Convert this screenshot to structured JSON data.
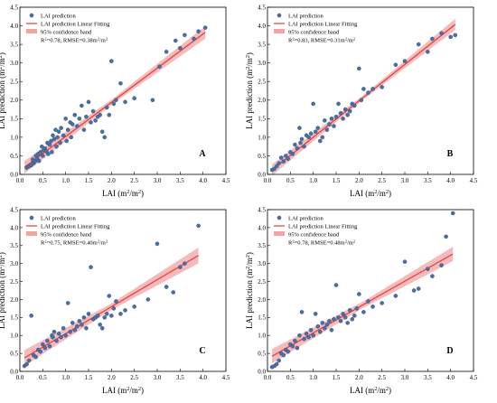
{
  "figure": {
    "colors": {
      "point": "#4a6fa5",
      "point_edge": "#2f4f7f",
      "fit_line": "#e03c3c",
      "band": "#f4a3a3"
    },
    "legend": {
      "points": "LAI prediction",
      "line": "LAI prediction Linear Fitting",
      "band": "95% confidence band"
    }
  },
  "chart_data": [
    {
      "type": "scatter",
      "panel_label": "A",
      "xlabel": "LAI (m²/m²)",
      "ylabel": "LAI prediction (m²/m²)",
      "xlim": [
        0,
        4.5
      ],
      "ylim": [
        0,
        4.5
      ],
      "xticks": [
        "0.0",
        "0.5",
        "1.0",
        "1.5",
        "2.0",
        "2.5",
        "3.0",
        "3.5",
        "4.0",
        "4.5"
      ],
      "yticks": [
        "0.0",
        "0.5",
        "1.0",
        "1.5",
        "2.0",
        "2.5",
        "3.0",
        "3.5",
        "4.0",
        "4.5"
      ],
      "stats": "R²=0.78, RMSE=0.38m²/m²",
      "fit": {
        "slope": 0.92,
        "intercept": 0.1
      },
      "band_halfwidth": [
        0.07,
        0.17
      ],
      "points": [
        [
          0.15,
          0.18
        ],
        [
          0.2,
          0.22
        ],
        [
          0.25,
          0.25
        ],
        [
          0.28,
          0.4
        ],
        [
          0.3,
          0.3
        ],
        [
          0.33,
          0.35
        ],
        [
          0.35,
          0.5
        ],
        [
          0.38,
          0.42
        ],
        [
          0.4,
          0.55
        ],
        [
          0.42,
          0.36
        ],
        [
          0.45,
          0.6
        ],
        [
          0.48,
          0.75
        ],
        [
          0.5,
          0.5
        ],
        [
          0.52,
          0.65
        ],
        [
          0.55,
          0.7
        ],
        [
          0.58,
          0.62
        ],
        [
          0.6,
          0.85
        ],
        [
          0.62,
          0.55
        ],
        [
          0.65,
          0.8
        ],
        [
          0.68,
          0.9
        ],
        [
          0.7,
          0.6
        ],
        [
          0.72,
          1.05
        ],
        [
          0.75,
          0.95
        ],
        [
          0.78,
          1.2
        ],
        [
          0.8,
          0.75
        ],
        [
          0.82,
          1.0
        ],
        [
          0.85,
          1.15
        ],
        [
          0.88,
          0.85
        ],
        [
          0.9,
          1.25
        ],
        [
          0.95,
          1.05
        ],
        [
          1.0,
          1.5
        ],
        [
          1.02,
          0.9
        ],
        [
          1.05,
          1.2
        ],
        [
          1.1,
          1.4
        ],
        [
          1.12,
          1.0
        ],
        [
          1.15,
          1.35
        ],
        [
          1.2,
          1.6
        ],
        [
          1.25,
          1.3
        ],
        [
          1.3,
          1.5
        ],
        [
          1.35,
          1.85
        ],
        [
          1.4,
          1.2
        ],
        [
          1.45,
          1.55
        ],
        [
          1.5,
          1.95
        ],
        [
          1.55,
          1.4
        ],
        [
          1.6,
          1.7
        ],
        [
          1.65,
          1.45
        ],
        [
          1.7,
          1.55
        ],
        [
          1.75,
          1.6
        ],
        [
          1.8,
          1.15
        ],
        [
          1.85,
          1.0
        ],
        [
          1.9,
          1.8
        ],
        [
          1.95,
          1.6
        ],
        [
          2.0,
          3.05
        ],
        [
          2.05,
          1.9
        ],
        [
          2.1,
          2.0
        ],
        [
          2.2,
          2.45
        ],
        [
          2.3,
          1.95
        ],
        [
          2.5,
          2.05
        ],
        [
          2.9,
          2.0
        ],
        [
          3.05,
          2.9
        ],
        [
          3.2,
          3.3
        ],
        [
          3.4,
          3.6
        ],
        [
          3.5,
          3.4
        ],
        [
          3.6,
          3.75
        ],
        [
          3.8,
          3.65
        ],
        [
          3.9,
          3.85
        ],
        [
          4.05,
          3.95
        ]
      ]
    },
    {
      "type": "scatter",
      "panel_label": "B",
      "xlabel": "LAI (m²/m²)",
      "ylabel": "LAI prediction (m²/m²)",
      "xlim": [
        0,
        4.5
      ],
      "ylim": [
        0,
        4.5
      ],
      "xticks": [
        "0.0",
        "0.5",
        "1.0",
        "1.5",
        "2.0",
        "2.5",
        "3.0",
        "3.5",
        "4.0",
        "4.5"
      ],
      "yticks": [
        "0.0",
        "0.5",
        "1.0",
        "1.5",
        "2.0",
        "2.5",
        "3.0",
        "3.5",
        "4.0",
        "4.5"
      ],
      "stats": "R²=0.83, RMSE=0.31m²/m²",
      "fit": {
        "slope": 0.98,
        "intercept": 0.02
      },
      "band_halfwidth": [
        0.06,
        0.15
      ],
      "points": [
        [
          0.1,
          0.12
        ],
        [
          0.15,
          0.15
        ],
        [
          0.2,
          0.22
        ],
        [
          0.25,
          0.3
        ],
        [
          0.3,
          0.45
        ],
        [
          0.35,
          0.35
        ],
        [
          0.4,
          0.5
        ],
        [
          0.45,
          0.42
        ],
        [
          0.5,
          0.6
        ],
        [
          0.55,
          0.55
        ],
        [
          0.6,
          0.8
        ],
        [
          0.65,
          0.7
        ],
        [
          0.7,
          1.25
        ],
        [
          0.72,
          0.85
        ],
        [
          0.75,
          0.95
        ],
        [
          0.8,
          0.75
        ],
        [
          0.85,
          1.05
        ],
        [
          0.9,
          1.0
        ],
        [
          0.95,
          1.1
        ],
        [
          1.0,
          1.9
        ],
        [
          1.05,
          1.15
        ],
        [
          1.1,
          1.25
        ],
        [
          1.15,
          0.9
        ],
        [
          1.2,
          1.0
        ],
        [
          1.25,
          1.45
        ],
        [
          1.3,
          1.2
        ],
        [
          1.35,
          1.35
        ],
        [
          1.4,
          1.5
        ],
        [
          1.45,
          1.3
        ],
        [
          1.5,
          1.55
        ],
        [
          1.55,
          1.9
        ],
        [
          1.6,
          1.65
        ],
        [
          1.65,
          1.5
        ],
        [
          1.7,
          1.75
        ],
        [
          1.75,
          1.6
        ],
        [
          1.8,
          1.7
        ],
        [
          1.85,
          1.9
        ],
        [
          1.9,
          1.85
        ],
        [
          2.0,
          2.85
        ],
        [
          2.05,
          2.0
        ],
        [
          2.1,
          2.3
        ],
        [
          2.2,
          2.2
        ],
        [
          2.3,
          2.3
        ],
        [
          2.5,
          2.35
        ],
        [
          2.8,
          2.95
        ],
        [
          3.0,
          3.05
        ],
        [
          3.3,
          3.5
        ],
        [
          3.5,
          3.3
        ],
        [
          3.6,
          3.65
        ],
        [
          3.8,
          3.8
        ],
        [
          4.0,
          3.7
        ],
        [
          4.1,
          3.75
        ]
      ]
    },
    {
      "type": "scatter",
      "panel_label": "C",
      "xlabel": "LAI (m²/m²)",
      "ylabel": "LAI prediction (m²/m²)",
      "xlim": [
        0,
        4.5
      ],
      "ylim": [
        0,
        4.5
      ],
      "xticks": [
        "0.0",
        "0.5",
        "1.0",
        "1.5",
        "2.0",
        "2.5",
        "3.0",
        "3.5",
        "4.0",
        "4.5"
      ],
      "yticks": [
        "0.0",
        "0.5",
        "1.0",
        "1.5",
        "2.0",
        "2.5",
        "3.0",
        "3.5",
        "4.0",
        "4.5"
      ],
      "stats": "R²=0.75, RMSE=0.40m²/m²",
      "fit": {
        "slope": 0.75,
        "intercept": 0.3
      },
      "band_halfwidth": [
        0.09,
        0.22
      ],
      "points": [
        [
          0.1,
          0.15
        ],
        [
          0.15,
          0.2
        ],
        [
          0.2,
          0.3
        ],
        [
          0.25,
          1.55
        ],
        [
          0.3,
          0.45
        ],
        [
          0.35,
          0.4
        ],
        [
          0.4,
          0.6
        ],
        [
          0.45,
          0.55
        ],
        [
          0.5,
          0.75
        ],
        [
          0.55,
          0.65
        ],
        [
          0.6,
          0.85
        ],
        [
          0.65,
          0.7
        ],
        [
          0.7,
          1.0
        ],
        [
          0.72,
          0.95
        ],
        [
          0.75,
          1.1
        ],
        [
          0.8,
          0.85
        ],
        [
          0.85,
          1.05
        ],
        [
          0.9,
          0.95
        ],
        [
          0.95,
          1.2
        ],
        [
          1.0,
          1.0
        ],
        [
          1.05,
          1.9
        ],
        [
          1.1,
          1.1
        ],
        [
          1.15,
          1.35
        ],
        [
          1.2,
          1.15
        ],
        [
          1.25,
          1.25
        ],
        [
          1.3,
          1.4
        ],
        [
          1.35,
          1.3
        ],
        [
          1.4,
          1.5
        ],
        [
          1.45,
          1.2
        ],
        [
          1.5,
          1.6
        ],
        [
          1.55,
          2.9
        ],
        [
          1.6,
          1.45
        ],
        [
          1.65,
          1.5
        ],
        [
          1.7,
          1.55
        ],
        [
          1.75,
          1.3
        ],
        [
          1.8,
          1.2
        ],
        [
          1.85,
          1.5
        ],
        [
          1.9,
          1.6
        ],
        [
          1.95,
          2.1
        ],
        [
          2.0,
          1.55
        ],
        [
          2.05,
          1.75
        ],
        [
          2.1,
          1.95
        ],
        [
          2.2,
          1.6
        ],
        [
          2.3,
          1.7
        ],
        [
          2.5,
          1.8
        ],
        [
          2.8,
          2.0
        ],
        [
          3.0,
          3.55
        ],
        [
          3.2,
          2.35
        ],
        [
          3.35,
          2.2
        ],
        [
          3.5,
          2.9
        ],
        [
          3.6,
          3.0
        ],
        [
          3.9,
          4.05
        ]
      ]
    },
    {
      "type": "scatter",
      "panel_label": "D",
      "xlabel": "LAI (m²/m²)",
      "ylabel": "LAI prediction (m²/m²)",
      "xlim": [
        0,
        4.5
      ],
      "ylim": [
        0,
        4.5
      ],
      "xticks": [
        "0.0",
        "0.5",
        "1.0",
        "1.5",
        "2.0",
        "2.5",
        "3.0",
        "3.5",
        "4.0",
        "4.5"
      ],
      "yticks": [
        "0.0",
        "0.5",
        "1.0",
        "1.5",
        "2.0",
        "2.5",
        "3.0",
        "3.5",
        "4.0",
        "4.5"
      ],
      "stats": "R²=0.78, RMSE=0.48m²/m²",
      "fit": {
        "slope": 0.72,
        "intercept": 0.35
      },
      "band_halfwidth": [
        0.09,
        0.2
      ],
      "points": [
        [
          0.1,
          0.12
        ],
        [
          0.15,
          0.15
        ],
        [
          0.2,
          0.2
        ],
        [
          0.25,
          0.3
        ],
        [
          0.3,
          0.5
        ],
        [
          0.35,
          0.45
        ],
        [
          0.4,
          0.6
        ],
        [
          0.45,
          0.55
        ],
        [
          0.5,
          0.75
        ],
        [
          0.55,
          0.7
        ],
        [
          0.6,
          0.85
        ],
        [
          0.65,
          0.65
        ],
        [
          0.7,
          1.0
        ],
        [
          0.75,
          1.65
        ],
        [
          0.8,
          0.9
        ],
        [
          0.85,
          1.05
        ],
        [
          0.9,
          0.95
        ],
        [
          0.95,
          1.15
        ],
        [
          1.0,
          1.0
        ],
        [
          1.05,
          1.6
        ],
        [
          1.1,
          1.25
        ],
        [
          1.15,
          1.1
        ],
        [
          1.2,
          1.35
        ],
        [
          1.25,
          1.2
        ],
        [
          1.3,
          1.3
        ],
        [
          1.35,
          1.4
        ],
        [
          1.4,
          1.15
        ],
        [
          1.45,
          1.45
        ],
        [
          1.5,
          2.4
        ],
        [
          1.55,
          1.5
        ],
        [
          1.6,
          1.4
        ],
        [
          1.65,
          1.6
        ],
        [
          1.7,
          1.5
        ],
        [
          1.75,
          1.35
        ],
        [
          1.8,
          1.7
        ],
        [
          1.85,
          1.45
        ],
        [
          1.9,
          1.55
        ],
        [
          1.95,
          1.75
        ],
        [
          2.0,
          2.15
        ],
        [
          2.1,
          1.65
        ],
        [
          2.2,
          1.95
        ],
        [
          2.3,
          1.8
        ],
        [
          2.5,
          1.9
        ],
        [
          2.8,
          2.1
        ],
        [
          3.0,
          3.05
        ],
        [
          3.2,
          2.25
        ],
        [
          3.3,
          2.3
        ],
        [
          3.5,
          2.85
        ],
        [
          3.6,
          2.65
        ],
        [
          3.8,
          2.95
        ],
        [
          3.9,
          3.75
        ],
        [
          4.05,
          4.4
        ]
      ]
    }
  ]
}
